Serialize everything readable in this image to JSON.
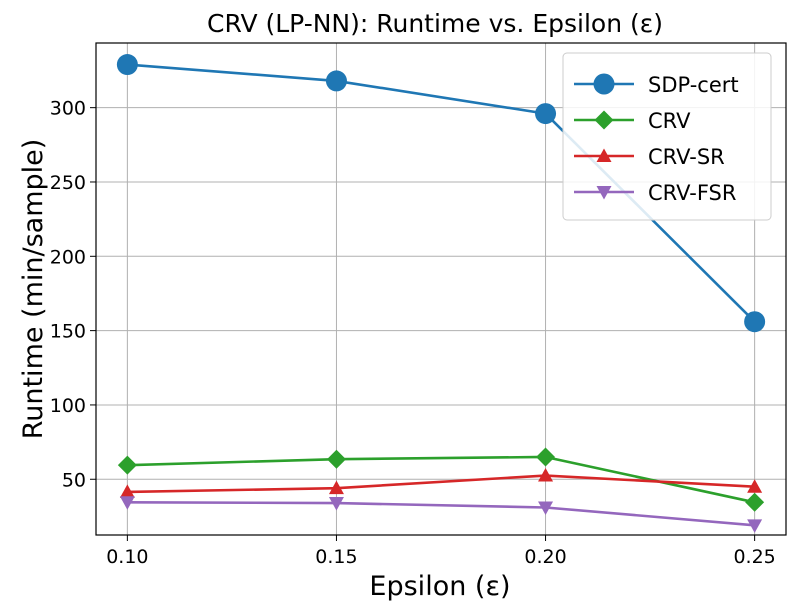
{
  "chart_data": {
    "type": "line",
    "title": "CRV (LP-NN): Runtime vs. Epsilon (ε)",
    "xlabel": "Epsilon (ε)",
    "ylabel": "Runtime (min/sample)",
    "x": [
      0.1,
      0.15,
      0.2,
      0.25
    ],
    "x_tick_labels": [
      "0.10",
      "0.15",
      "0.20",
      "0.25"
    ],
    "y_ticks": [
      50,
      100,
      150,
      200,
      250,
      300
    ],
    "y_tick_labels": [
      "50",
      "100",
      "150",
      "200",
      "250",
      "300"
    ],
    "xlim": [
      0.0925,
      0.2575
    ],
    "ylim": [
      12.5,
      343.5
    ],
    "grid": true,
    "legend_position": "top-right",
    "series": [
      {
        "name": "SDP-cert",
        "color": "#1f77b4",
        "marker": "circle",
        "values": [
          329,
          318,
          296,
          156
        ]
      },
      {
        "name": "CRV",
        "color": "#2ca02c",
        "marker": "diamond",
        "values": [
          59.5,
          63.5,
          65,
          34.5
        ]
      },
      {
        "name": "CRV-SR",
        "color": "#d62728",
        "marker": "triangle-up",
        "values": [
          41.5,
          44,
          52.5,
          45
        ]
      },
      {
        "name": "CRV-FSR",
        "color": "#9467bd",
        "marker": "triangle-down",
        "values": [
          34.5,
          34,
          31,
          19
        ]
      }
    ]
  }
}
